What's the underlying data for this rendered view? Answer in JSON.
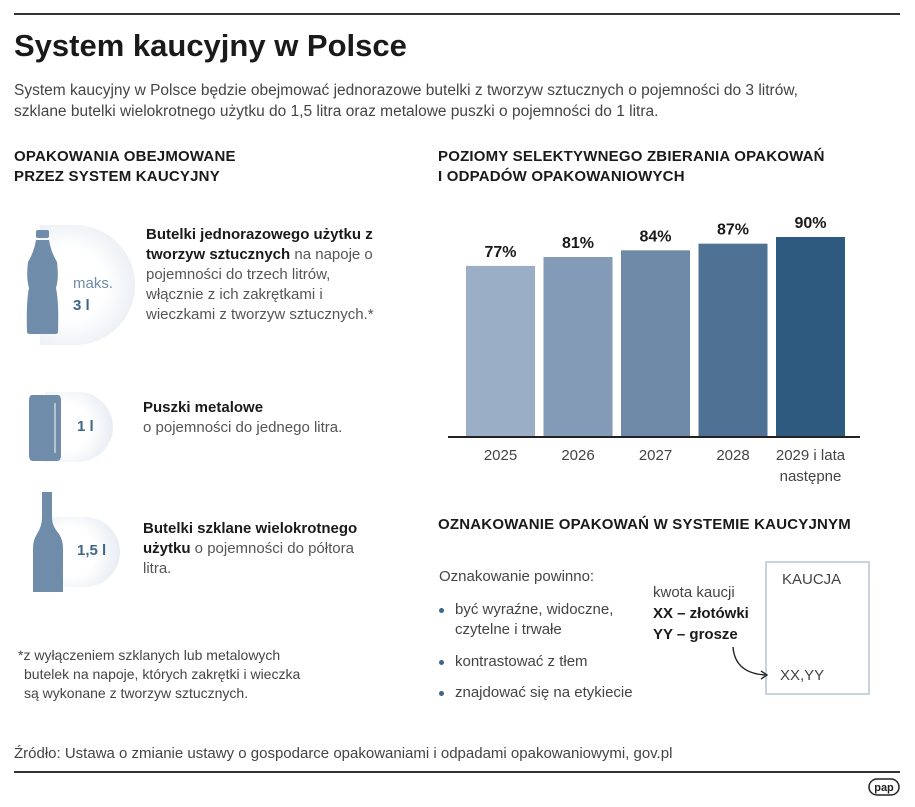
{
  "title": "System kaucyjny w Polsce",
  "subtitle": [
    "System kaucyjny w Polsce będzie obejmować jednorazowe butelki z tworzyw sztucznych o pojemności do 3 litrów,",
    "szklane butelki wielokrotnego użytku do 1,5 litra oraz metalowe puszki o pojemności do 1 litra."
  ],
  "packaging": {
    "heading": [
      "OPAKOWANIA OBEJMOWANE",
      "PRZEZ SYSTEM KAUCYJNY"
    ],
    "items": [
      {
        "icon": "plastic-bottle-icon",
        "cap1": "maks.",
        "cap2": "3 l",
        "bold": "Butelki jednorazowego użytku z tworzyw sztucznych",
        "text": " na napoje o pojemności do trzech litrów, włącznie z ich zakrętkami i wieczkami z tworzyw sztucznych.*"
      },
      {
        "icon": "can-icon",
        "cap2": "1 l",
        "bold": "Puszki metalowe",
        "text": " o pojemności do jednego litra."
      },
      {
        "icon": "glass-bottle-icon",
        "cap2": "1,5 l",
        "bold": "Butelki szklane wielokrotnego użytku",
        "text": " o pojemności do półtora litra."
      }
    ],
    "footnote": [
      "*z wyłączeniem szklanych lub metalowych",
      "butelek na napoje, których zakrętki i wieczka",
      "są wykonane z tworzyw sztucznych."
    ]
  },
  "chart_data": {
    "type": "bar",
    "title": "POZIOMY SELEKTYWNEGO ZBIERANIA OPAKOWAŃ I ODPADÓW OPAKOWANIOWYCH",
    "title_lines": [
      "POZIOMY SELEKTYWNEGO ZBIERANIA OPAKOWAŃ",
      "I ODPADÓW OPAKOWANIOWYCH"
    ],
    "categories": [
      "2025",
      "2026",
      "2027",
      "2028",
      "2029 i lata następne"
    ],
    "category_lines": [
      [
        "2025"
      ],
      [
        "2026"
      ],
      [
        "2027"
      ],
      [
        "2028"
      ],
      [
        "2029 i lata",
        "następne"
      ]
    ],
    "values": [
      77,
      81,
      84,
      87,
      90
    ],
    "data_labels": [
      "77%",
      "81%",
      "84%",
      "87%",
      "90%"
    ],
    "unit": "%",
    "ylim": [
      0,
      100
    ],
    "grid": false,
    "colors": [
      "#9aaec6",
      "#839bb7",
      "#6e8aa8",
      "#4f7194",
      "#2e5a80"
    ]
  },
  "marking": {
    "heading": "OZNAKOWANIE OPAKOWAŃ W SYSTEMIE KAUCYJNYM",
    "intro": "Oznakowanie powinno:",
    "bullets": [
      [
        "być wyraźne, widoczne,",
        "czytelne i trwałe"
      ],
      [
        "kontrastować z tłem"
      ],
      [
        "znajdować się na etykiecie"
      ]
    ],
    "label_title": "kwota kaucji",
    "label_xx": "XX – złotówki",
    "label_yy": "YY – grosze",
    "box_title": "KAUCJA",
    "box_value": "XX,YY"
  },
  "source": "Źródło: Ustawa o zmianie ustawy o gospodarce opakowaniami i odpadami opakowaniowymi, gov.pl",
  "logo": "pap",
  "colors": {
    "accent": "#3f6587",
    "icon": "#6f8caa"
  }
}
